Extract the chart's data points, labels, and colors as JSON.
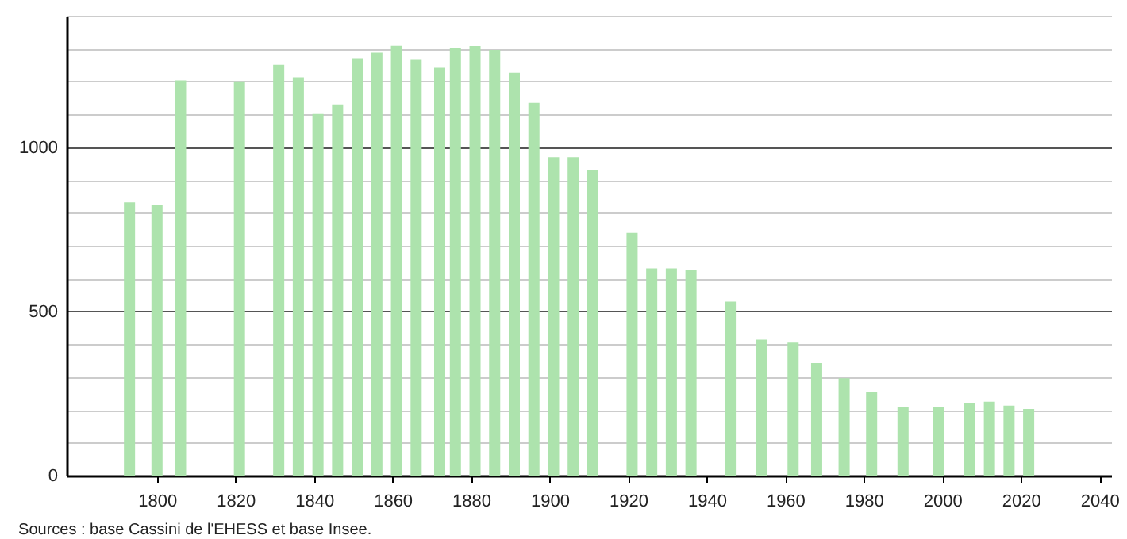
{
  "chart_data": {
    "type": "bar",
    "x": [
      1793,
      1800,
      1806,
      1821,
      1831,
      1836,
      1841,
      1846,
      1851,
      1856,
      1861,
      1866,
      1872,
      1876,
      1881,
      1886,
      1891,
      1896,
      1901,
      1906,
      1911,
      1921,
      1926,
      1931,
      1936,
      1946,
      1954,
      1962,
      1968,
      1975,
      1982,
      1990,
      1999,
      2007,
      2012,
      2017,
      2022
    ],
    "series": [
      {
        "color": "#ade3ad",
        "values": [
          832,
          825,
          1203,
          1200,
          1251,
          1213,
          1101,
          1130,
          1271,
          1288,
          1309,
          1266,
          1242,
          1303,
          1308,
          1296,
          1227,
          1135,
          970,
          970,
          931,
          739,
          631,
          631,
          627,
          530,
          414,
          405,
          343,
          296,
          256,
          208,
          208,
          222,
          225,
          213,
          203
        ]
      }
    ],
    "xlim": [
      1777,
      2043
    ],
    "xticks": [
      1800,
      1820,
      1840,
      1860,
      1880,
      1900,
      1920,
      1940,
      1960,
      1980,
      2000,
      2020,
      2040
    ],
    "ylim": [
      0,
      1400
    ],
    "yticks": [
      0,
      {
        "value": 100,
        "label": null
      },
      {
        "value": 200,
        "label": null
      },
      {
        "value": 300,
        "label": null
      },
      {
        "value": 400,
        "label": null
      },
      500,
      {
        "value": 600,
        "label": null
      },
      {
        "value": 700,
        "label": null
      },
      {
        "value": 800,
        "label": null
      },
      {
        "value": 900,
        "label": null
      },
      1000,
      {
        "value": 1100,
        "label": null
      },
      {
        "value": 1200,
        "label": null
      },
      {
        "value": 1300,
        "label": null
      },
      {
        "value": 1400,
        "label": null
      }
    ],
    "grid": "y",
    "annotations": [
      "Sources : base Cassini de l'EHESS et base Insee."
    ]
  }
}
